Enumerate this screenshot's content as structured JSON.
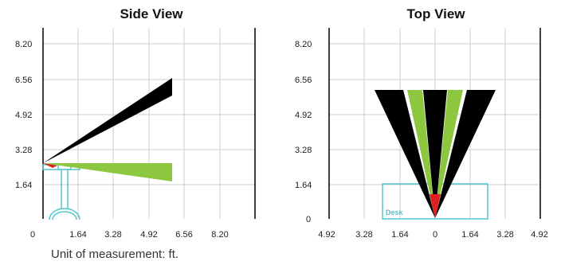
{
  "side_view": {
    "title": "Side View",
    "x_ticks": [
      "0",
      "1.64",
      "3.28",
      "4.92",
      "6.56",
      "8.20"
    ],
    "y_ticks": [
      "8.20",
      "6.56",
      "4.92",
      "3.28",
      "1.64"
    ]
  },
  "top_view": {
    "title": "Top View",
    "x_ticks": [
      "4.92",
      "3.28",
      "1.64",
      "0",
      "1.64",
      "3.28",
      "4.92"
    ],
    "y_ticks": [
      "8.20",
      "6.56",
      "4.92",
      "3.28",
      "1.64",
      "0"
    ],
    "desk_label": "Desk"
  },
  "colors": {
    "black_beam": "#000000",
    "green_beam": "#8dc63f",
    "red_marker": "#e02020",
    "desk_outline": "#55c6cc",
    "grid": "#cccccc"
  },
  "footer": {
    "unit_note": "Unit of measurement: ft."
  }
}
